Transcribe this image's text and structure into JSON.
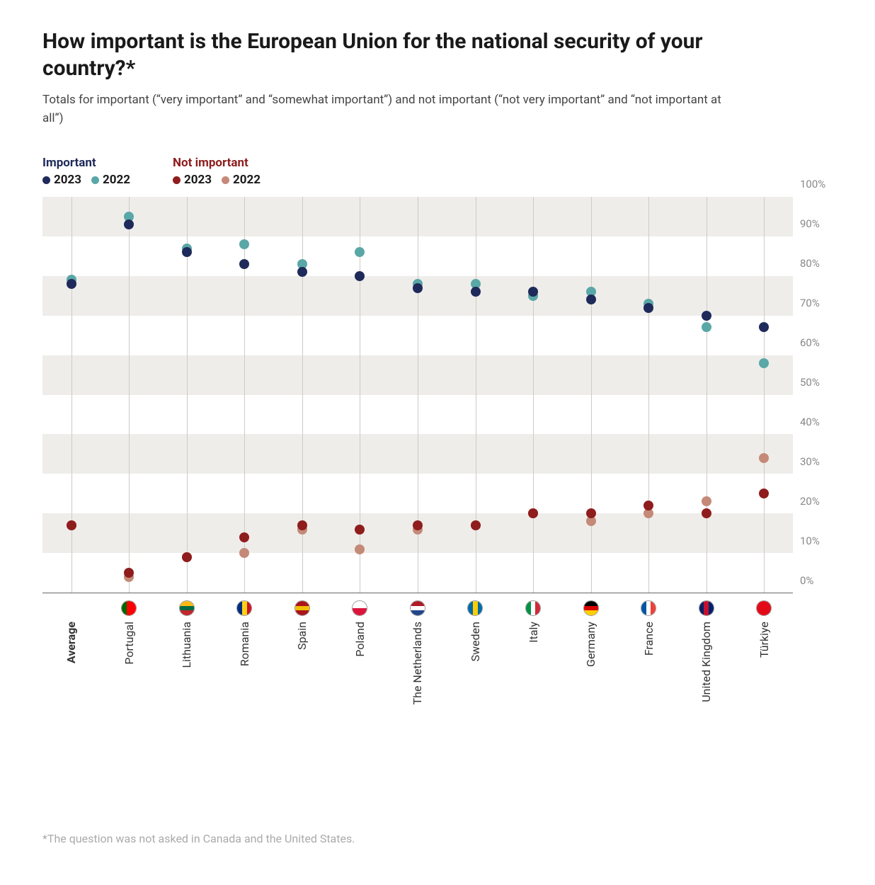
{
  "title": "How important is the European Union for the national security of your country?*",
  "subtitle": "Totals for important (“very important” and “somewhat important”) and not important (“not very important” and “not important at all”)",
  "footnote": "*The question was not asked in Canada and the United States.",
  "legend": {
    "important": {
      "title": "Important",
      "title_color": "#1e2a5a",
      "y2023": {
        "label": "2023",
        "color": "#1e2a5a"
      },
      "y2022": {
        "label": "2022",
        "color": "#5aa7a7"
      }
    },
    "not_important": {
      "title": "Not important",
      "title_color": "#8f1d1d",
      "y2023": {
        "label": "2023",
        "color": "#8f1d1d"
      },
      "y2022": {
        "label": "2022",
        "color": "#c48a77"
      }
    }
  },
  "chart": {
    "type": "dot",
    "ylim": [
      0,
      100
    ],
    "ytick_step": 10,
    "ysuffix": "%",
    "band_color": "#efedea",
    "gridline_color": "#cfcac5",
    "background_color": "#ffffff",
    "point_radius": 7,
    "series_colors": {
      "important_2023": "#1e2a5a",
      "important_2022": "#5aa7a7",
      "not_important_2023": "#8f1d1d",
      "not_important_2022": "#c48a77"
    },
    "categories": [
      {
        "label": "Average",
        "bold": true,
        "flag": null,
        "important_2023": 78,
        "important_2022": 79,
        "not_important_2023": 17,
        "not_important_2022": 17
      },
      {
        "label": "Portugal",
        "flag": [
          "#006600",
          "#ff0000",
          "#ff0000"
        ],
        "important_2023": 93,
        "important_2022": 95,
        "not_important_2023": 5,
        "not_important_2022": 4
      },
      {
        "label": "Lithuania",
        "flag": [
          "#fdb913",
          "#006a44",
          "#c1272d"
        ],
        "flag_dir": "v",
        "important_2023": 86,
        "important_2022": 87,
        "not_important_2023": 9,
        "not_important_2022": 9
      },
      {
        "label": "Romania",
        "flag": [
          "#002b7f",
          "#fcd116",
          "#ce1126"
        ],
        "important_2023": 83,
        "important_2022": 88,
        "not_important_2023": 14,
        "not_important_2022": 10
      },
      {
        "label": "Spain",
        "flag": [
          "#aa151b",
          "#f1bf00",
          "#aa151b"
        ],
        "flag_dir": "v",
        "important_2023": 81,
        "important_2022": 83,
        "not_important_2023": 17,
        "not_important_2022": 16
      },
      {
        "label": "Poland",
        "flag": [
          "#ffffff",
          "#dc143c"
        ],
        "flag_dir": "v",
        "important_2023": 80,
        "important_2022": 86,
        "not_important_2023": 16,
        "not_important_2022": 11
      },
      {
        "label": "The Netherlands",
        "flag": [
          "#ae1c28",
          "#ffffff",
          "#21468b"
        ],
        "flag_dir": "v",
        "important_2023": 77,
        "important_2022": 78,
        "not_important_2023": 17,
        "not_important_2022": 16
      },
      {
        "label": "Sweden",
        "flag": [
          "#006aa7",
          "#fecc00",
          "#006aa7"
        ],
        "important_2023": 76,
        "important_2022": 78,
        "not_important_2023": 17,
        "not_important_2022": 17
      },
      {
        "label": "Italy",
        "flag": [
          "#009246",
          "#ffffff",
          "#ce2b37"
        ],
        "important_2023": 76,
        "important_2022": 75,
        "not_important_2023": 20,
        "not_important_2022": 20
      },
      {
        "label": "Germany",
        "flag": [
          "#000000",
          "#dd0000",
          "#ffce00"
        ],
        "flag_dir": "v",
        "important_2023": 74,
        "important_2022": 76,
        "not_important_2023": 20,
        "not_important_2022": 18
      },
      {
        "label": "France",
        "flag": [
          "#0055a4",
          "#ffffff",
          "#ef4135"
        ],
        "important_2023": 72,
        "important_2022": 73,
        "not_important_2023": 22,
        "not_important_2022": 20
      },
      {
        "label": "United Kingdom",
        "flag": [
          "#012169",
          "#c8102e",
          "#012169"
        ],
        "important_2023": 70,
        "important_2022": 67,
        "not_important_2023": 20,
        "not_important_2022": 23
      },
      {
        "label": "Türkiye",
        "flag": [
          "#e30a17",
          "#e30a17",
          "#e30a17"
        ],
        "important_2023": 67,
        "important_2022": 58,
        "not_important_2023": 25,
        "not_important_2022": 34
      }
    ]
  }
}
